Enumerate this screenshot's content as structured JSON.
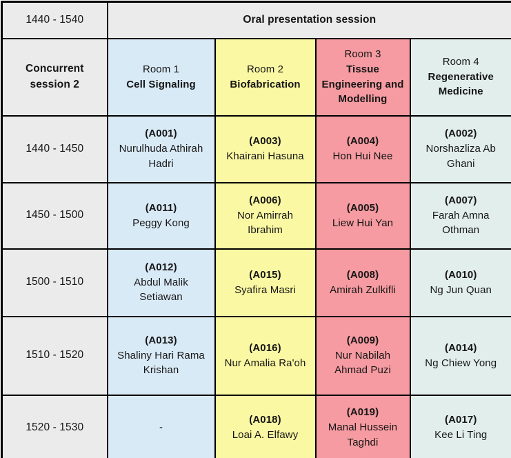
{
  "colors": {
    "gray_bg": "#ebebeb",
    "room1_bg": "#d9eaf7",
    "room2_bg": "#fbf8a3",
    "room3_bg": "#f59ba1",
    "room4_bg": "#e2eeeb",
    "border": "#000000",
    "text": "#161616"
  },
  "table": {
    "top_row": {
      "time": "1440 - 1540",
      "title": "Oral presentation session"
    },
    "header": {
      "session_label": "Concurrent session 2",
      "rooms": [
        {
          "room": "Room 1",
          "track": "Cell Signaling"
        },
        {
          "room": "Room 2",
          "track": "Biofabrication"
        },
        {
          "room": "Room 3",
          "track": "Tissue Engineering and Modelling"
        },
        {
          "room": "Room 4",
          "track": "Regenerative Medicine"
        }
      ]
    },
    "rows": [
      {
        "time": "1440 - 1450",
        "cells": [
          {
            "code": "(A001)",
            "name": "Nurulhuda Athirah Hadri"
          },
          {
            "code": "(A003)",
            "name": "Khairani Hasuna"
          },
          {
            "code": "(A004)",
            "name": "Hon Hui Nee"
          },
          {
            "code": "(A002)",
            "name": "Norshazliza Ab Ghani"
          }
        ]
      },
      {
        "time": "1450 - 1500",
        "cells": [
          {
            "code": "(A011)",
            "name": "Peggy Kong"
          },
          {
            "code": "(A006)",
            "name": "Nor Amirrah Ibrahim"
          },
          {
            "code": "(A005)",
            "name": "Liew Hui Yan"
          },
          {
            "code": "(A007)",
            "name": "Farah Amna Othman"
          }
        ]
      },
      {
        "time": "1500 - 1510",
        "cells": [
          {
            "code": "(A012)",
            "name": "Abdul Malik Setiawan"
          },
          {
            "code": "(A015)",
            "name": "Syafira Masri"
          },
          {
            "code": "(A008)",
            "name": "Amirah Zulkifli"
          },
          {
            "code": "(A010)",
            "name": "Ng Jun Quan"
          }
        ]
      },
      {
        "time": "1510 - 1520",
        "cells": [
          {
            "code": "(A013)",
            "name": "Shaliny Hari Rama Krishan"
          },
          {
            "code": "(A016)",
            "name": "Nur Amalia Ra'oh"
          },
          {
            "code": "(A009)",
            "name": "Nur Nabilah Ahmad Puzi"
          },
          {
            "code": "(A014)",
            "name": "Ng Chiew Yong"
          }
        ]
      },
      {
        "time": "1520 - 1530",
        "cells": [
          {
            "code": "",
            "name": "-"
          },
          {
            "code": "(A018)",
            "name": "Loai A. Elfawy"
          },
          {
            "code": "(A019)",
            "name": "Manal Hussein Taghdi"
          },
          {
            "code": "(A017)",
            "name": "Kee Li Ting"
          }
        ]
      }
    ]
  }
}
